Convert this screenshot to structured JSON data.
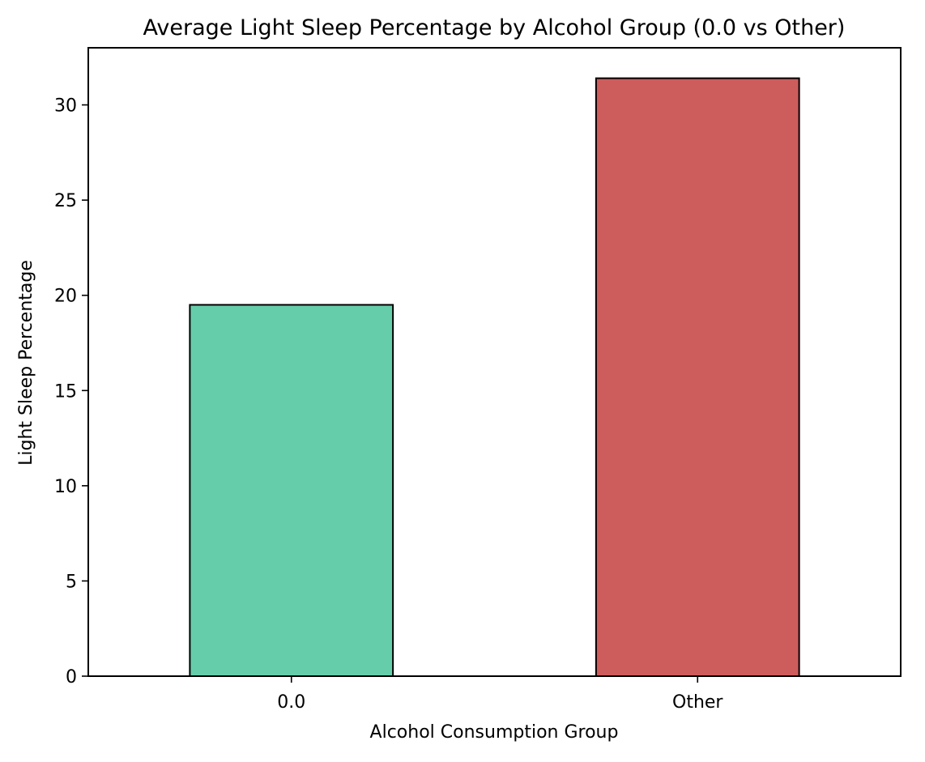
{
  "chart_data": {
    "type": "bar",
    "title": "Average Light Sleep Percentage by Alcohol Group (0.0 vs Other)",
    "xlabel": "Alcohol Consumption Group",
    "ylabel": "Light Sleep Percentage",
    "categories": [
      "0.0",
      "Other"
    ],
    "values": [
      19.5,
      31.4
    ],
    "colors": [
      "#66cdaa",
      "#cd5c5c"
    ],
    "bar_edge_color": "#000000",
    "ylim": [
      0,
      33
    ],
    "yticks": [
      0,
      5,
      10,
      15,
      20,
      25,
      30
    ],
    "grid": false,
    "legend": false
  }
}
